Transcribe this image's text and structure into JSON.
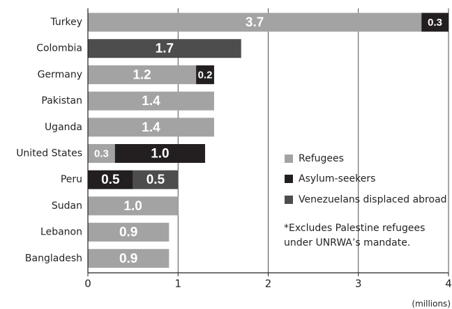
{
  "chart_data": {
    "type": "stacked_bar_horizontal",
    "categories": [
      "Turkey",
      "Colombia",
      "Germany",
      "Pakistan",
      "Uganda",
      "United States",
      "Peru",
      "Sudan",
      "Lebanon",
      "Bangladesh"
    ],
    "series": [
      {
        "name": "Refugees",
        "color": "#a3a3a3",
        "values": [
          3.7,
          null,
          1.2,
          1.4,
          1.4,
          0.3,
          null,
          1.0,
          0.9,
          0.9
        ]
      },
      {
        "name": "Asylum-seekers",
        "color": "#231f20",
        "values": [
          0.3,
          null,
          0.2,
          null,
          null,
          1.0,
          0.5,
          null,
          null,
          null
        ]
      },
      {
        "name": "Venezuelans displaced abroad",
        "color": "#4d4d4d",
        "values": [
          null,
          1.7,
          null,
          null,
          null,
          null,
          0.5,
          null,
          null,
          null
        ]
      }
    ],
    "value_labels": [
      [
        "3.7",
        null,
        "1.2",
        "1.4",
        "1.4",
        "0.3",
        null,
        "1.0",
        "0.9",
        "0.9"
      ],
      [
        "0.3",
        null,
        "0.2",
        null,
        null,
        "1.0",
        "0.5",
        null,
        null,
        null
      ],
      [
        null,
        "1.7",
        null,
        null,
        null,
        null,
        "0.5",
        null,
        null,
        null
      ]
    ],
    "xlim": [
      0,
      4
    ],
    "xticks": [
      0,
      1,
      2,
      3,
      4
    ],
    "x_label": "(millions)",
    "grid": true,
    "note": [
      "*Excludes Palestine refugees",
      "under UNRWA’s mandate."
    ]
  }
}
